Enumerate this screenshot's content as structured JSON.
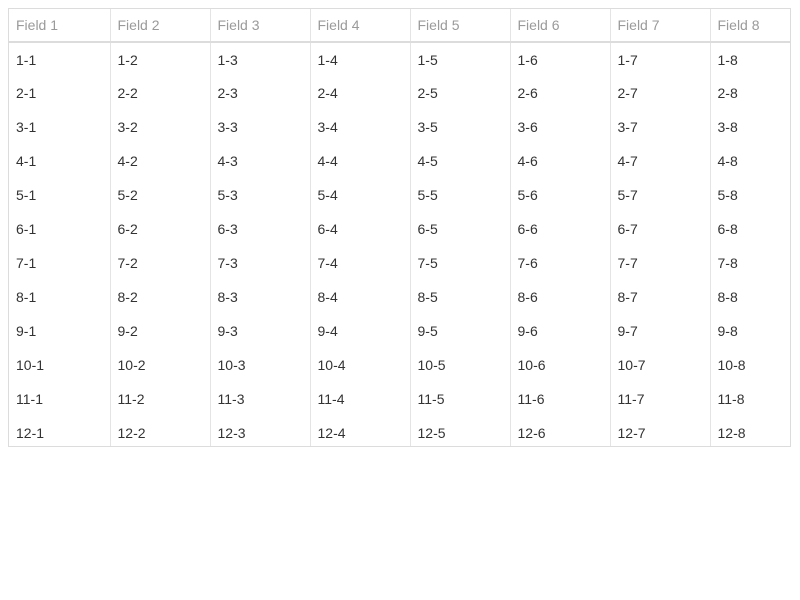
{
  "grid": {
    "columns": [
      "Field 1",
      "Field 2",
      "Field 3",
      "Field 4",
      "Field 5",
      "Field 6",
      "Field 7",
      "Field 8"
    ],
    "rows": [
      [
        "1-1",
        "1-2",
        "1-3",
        "1-4",
        "1-5",
        "1-6",
        "1-7",
        "1-8"
      ],
      [
        "2-1",
        "2-2",
        "2-3",
        "2-4",
        "2-5",
        "2-6",
        "2-7",
        "2-8"
      ],
      [
        "3-1",
        "3-2",
        "3-3",
        "3-4",
        "3-5",
        "3-6",
        "3-7",
        "3-8"
      ],
      [
        "4-1",
        "4-2",
        "4-3",
        "4-4",
        "4-5",
        "4-6",
        "4-7",
        "4-8"
      ],
      [
        "5-1",
        "5-2",
        "5-3",
        "5-4",
        "5-5",
        "5-6",
        "5-7",
        "5-8"
      ],
      [
        "6-1",
        "6-2",
        "6-3",
        "6-4",
        "6-5",
        "6-6",
        "6-7",
        "6-8"
      ],
      [
        "7-1",
        "7-2",
        "7-3",
        "7-4",
        "7-5",
        "7-6",
        "7-7",
        "7-8"
      ],
      [
        "8-1",
        "8-2",
        "8-3",
        "8-4",
        "8-5",
        "8-6",
        "8-7",
        "8-8"
      ],
      [
        "9-1",
        "9-2",
        "9-3",
        "9-4",
        "9-5",
        "9-6",
        "9-7",
        "9-8"
      ],
      [
        "10-1",
        "10-2",
        "10-3",
        "10-4",
        "10-5",
        "10-6",
        "10-7",
        "10-8"
      ],
      [
        "11-1",
        "11-2",
        "11-3",
        "11-4",
        "11-5",
        "11-6",
        "11-7",
        "11-8"
      ],
      [
        "12-1",
        "12-2",
        "12-3",
        "12-4",
        "12-5",
        "12-6",
        "12-7",
        "12-8"
      ]
    ]
  }
}
